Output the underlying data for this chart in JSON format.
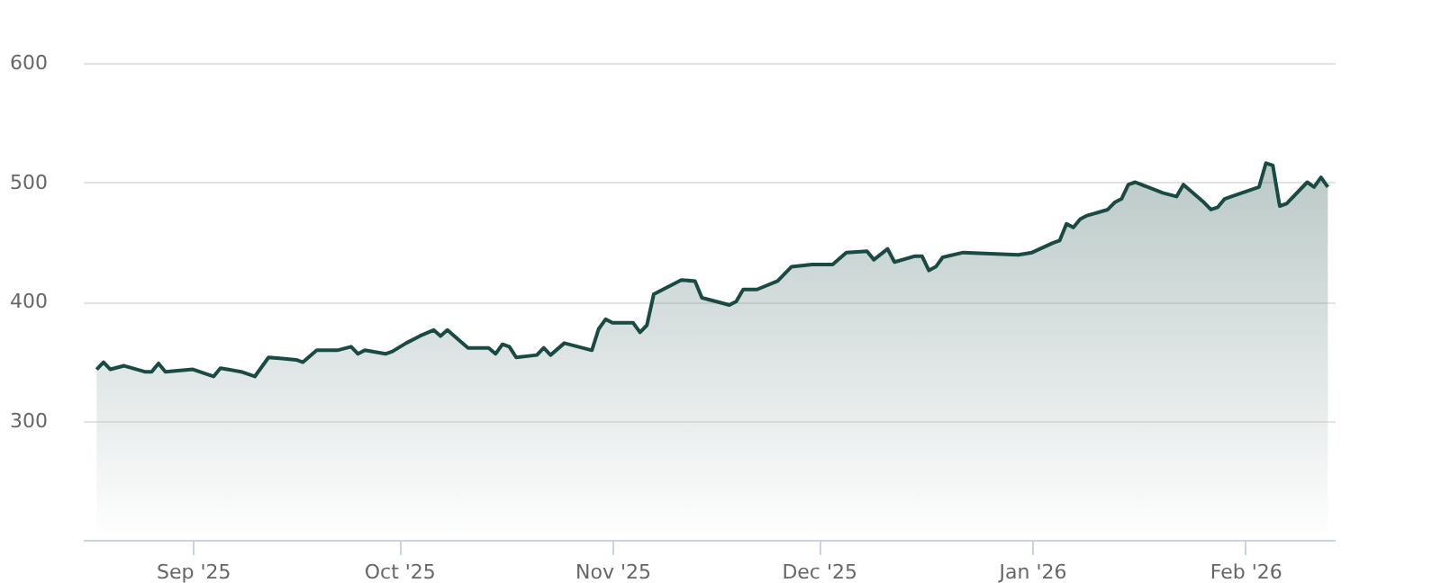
{
  "chart_data": {
    "type": "area",
    "x": [
      "2025-08-18",
      "2025-08-19",
      "2025-08-20",
      "2025-08-22",
      "2025-08-25",
      "2025-08-26",
      "2025-08-27",
      "2025-08-28",
      "2025-09-01",
      "2025-09-04",
      "2025-09-05",
      "2025-09-06",
      "2025-09-08",
      "2025-09-10",
      "2025-09-12",
      "2025-09-14",
      "2025-09-16",
      "2025-09-17",
      "2025-09-19",
      "2025-09-22",
      "2025-09-24",
      "2025-09-25",
      "2025-09-26",
      "2025-09-29",
      "2025-09-30",
      "2025-10-02",
      "2025-10-04",
      "2025-10-06",
      "2025-10-07",
      "2025-10-08",
      "2025-10-09",
      "2025-10-11",
      "2025-10-14",
      "2025-10-15",
      "2025-10-16",
      "2025-10-17",
      "2025-10-18",
      "2025-10-21",
      "2025-10-22",
      "2025-10-23",
      "2025-10-25",
      "2025-10-29",
      "2025-10-30",
      "2025-10-31",
      "2025-11-01",
      "2025-11-04",
      "2025-11-05",
      "2025-11-06",
      "2025-11-07",
      "2025-11-11",
      "2025-11-13",
      "2025-11-14",
      "2025-11-18",
      "2025-11-19",
      "2025-11-20",
      "2025-11-22",
      "2025-11-25",
      "2025-11-27",
      "2025-11-30",
      "2025-12-03",
      "2025-12-05",
      "2025-12-08",
      "2025-12-09",
      "2025-12-11",
      "2025-12-12",
      "2025-12-15",
      "2025-12-16",
      "2025-12-17",
      "2025-12-18",
      "2025-12-19",
      "2025-12-22",
      "2025-12-30",
      "2026-01-01",
      "2026-01-04",
      "2026-01-05",
      "2026-01-06",
      "2026-01-07",
      "2026-01-08",
      "2026-01-09",
      "2026-01-12",
      "2026-01-13",
      "2026-01-14",
      "2026-01-15",
      "2026-01-16",
      "2026-01-20",
      "2026-01-22",
      "2026-01-23",
      "2026-01-26",
      "2026-01-27",
      "2026-01-28",
      "2026-01-29",
      "2026-01-30",
      "2026-02-03",
      "2026-02-04",
      "2026-02-05",
      "2026-02-06",
      "2026-02-07",
      "2026-02-10",
      "2026-02-11",
      "2026-02-12",
      "2026-02-13"
    ],
    "series": [
      {
        "color": "#1a4a44",
        "values": [
          343,
          349,
          343,
          346,
          341,
          341,
          348,
          341,
          343,
          337,
          344,
          343,
          341,
          337,
          353,
          352,
          351,
          349,
          359,
          359,
          362,
          356,
          359,
          356,
          358,
          365,
          371,
          376,
          371,
          376,
          371,
          361,
          361,
          356,
          364,
          362,
          353,
          355,
          361,
          355,
          365,
          359,
          377,
          385,
          382,
          382,
          374,
          380,
          406,
          418,
          417,
          403,
          397,
          400,
          410,
          410,
          417,
          429,
          431,
          431,
          441,
          442,
          435,
          444,
          433,
          438,
          438,
          426,
          429,
          437,
          441,
          439,
          441,
          449,
          451,
          465,
          462,
          469,
          472,
          477,
          483,
          486,
          498,
          500,
          491,
          488,
          498,
          483,
          477,
          479,
          486,
          488,
          496,
          516,
          514,
          480,
          482,
          500,
          496,
          504,
          496
        ]
      }
    ],
    "xlim": [
      "2025-08-16",
      "2026-02-14"
    ],
    "xticks": [
      {
        "value": "2025-09-01",
        "label": "Sep '25"
      },
      {
        "value": "2025-10-01",
        "label": "Oct '25"
      },
      {
        "value": "2025-11-01",
        "label": "Nov '25"
      },
      {
        "value": "2025-12-01",
        "label": "Dec '25"
      },
      {
        "value": "2026-01-01",
        "label": "Jan '26"
      },
      {
        "value": "2026-02-01",
        "label": "Feb '26"
      }
    ],
    "ylim": [
      200,
      600
    ],
    "yticks": [
      300,
      400,
      500,
      600
    ],
    "grid": "y"
  }
}
